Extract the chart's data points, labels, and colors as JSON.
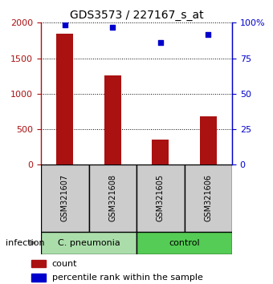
{
  "title": "GDS3573 / 227167_s_at",
  "samples": [
    "GSM321607",
    "GSM321608",
    "GSM321605",
    "GSM321606"
  ],
  "counts": [
    1850,
    1255,
    355,
    685
  ],
  "percentiles": [
    98.5,
    97.0,
    86.0,
    91.5
  ],
  "bar_color": "#aa1111",
  "dot_color": "#0000cc",
  "left_ylim": [
    0,
    2000
  ],
  "right_ylim": [
    0,
    100
  ],
  "left_yticks": [
    0,
    500,
    1000,
    1500,
    2000
  ],
  "right_yticks": [
    0,
    25,
    50,
    75,
    100
  ],
  "right_yticklabels": [
    "0",
    "25",
    "50",
    "75",
    "100%"
  ],
  "groups": [
    {
      "label": "C. pneumonia",
      "indices": [
        0,
        1
      ],
      "color": "#aaddaa"
    },
    {
      "label": "control",
      "indices": [
        2,
        3
      ],
      "color": "#55cc55"
    }
  ],
  "group_row_label": "infection",
  "legend_count_label": "count",
  "legend_pct_label": "percentile rank within the sample",
  "background_color": "#ffffff",
  "sample_box_color": "#cccccc",
  "title_fontsize": 10,
  "tick_fontsize": 8,
  "bar_width": 0.35
}
